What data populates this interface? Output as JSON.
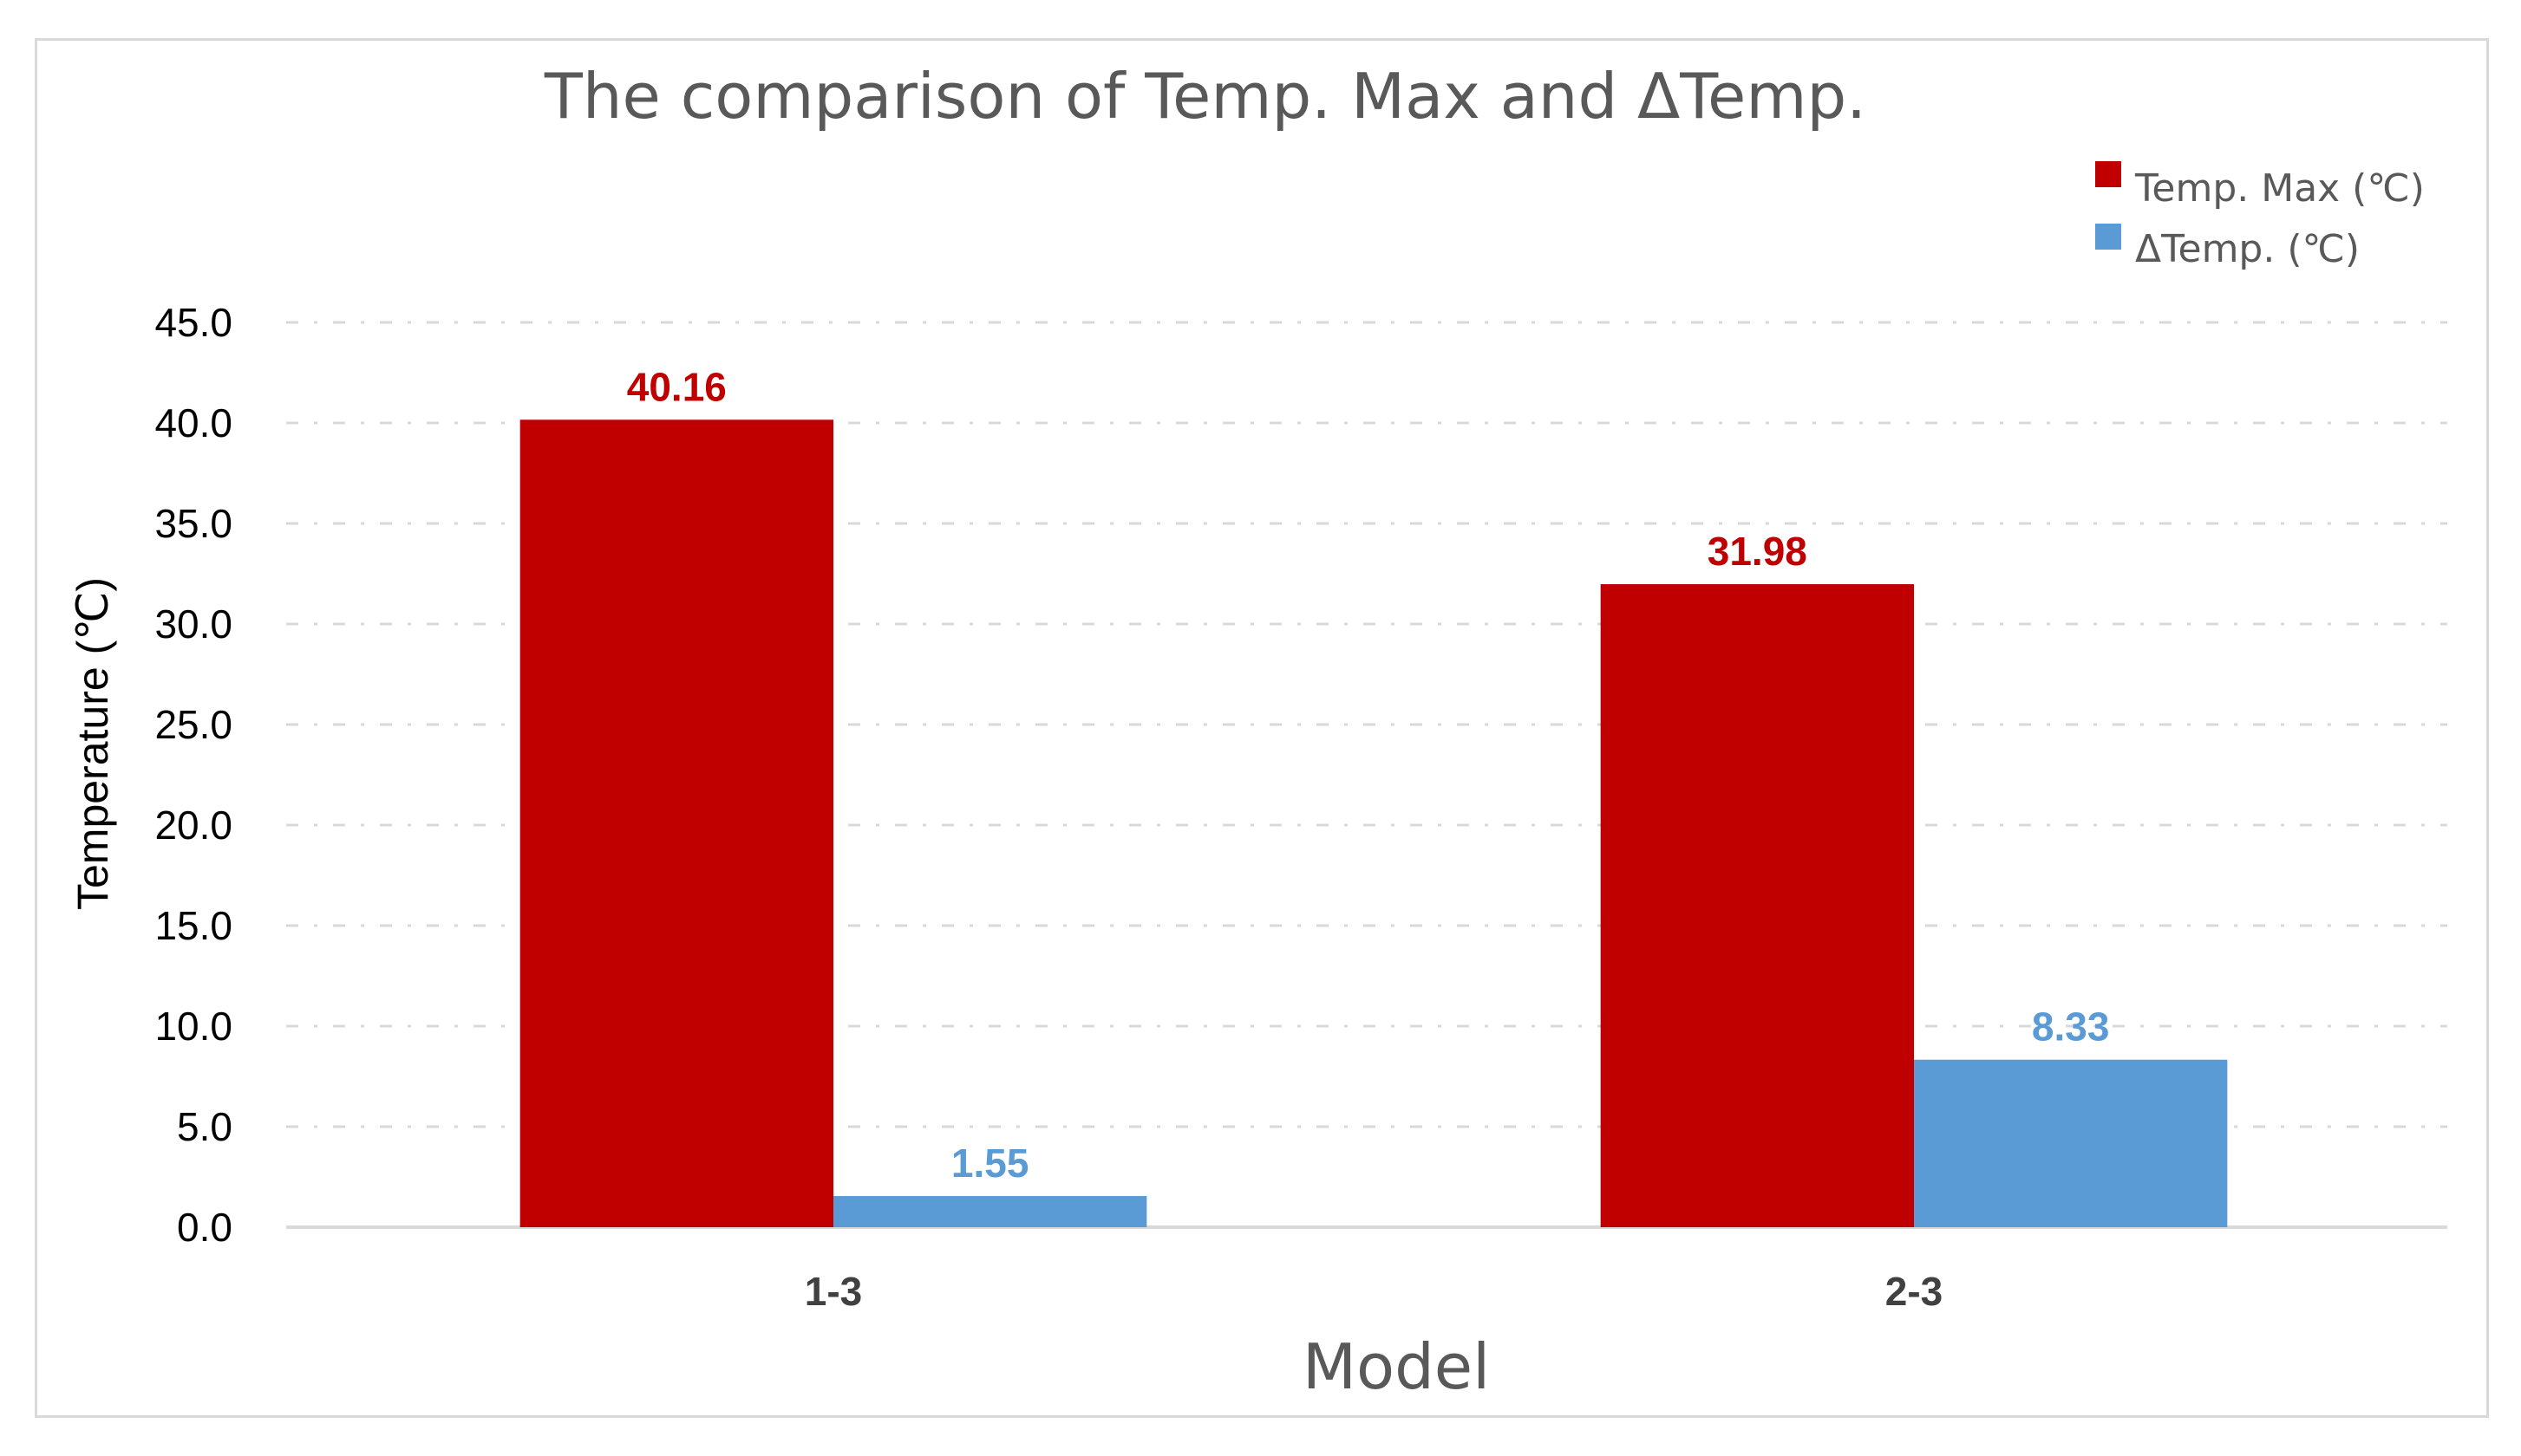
{
  "chart_data": {
    "type": "bar",
    "title": "The comparison of Temp. Max and ΔTemp.",
    "xlabel": "Model",
    "ylabel": "Temperature (℃)",
    "categories": [
      "1-3",
      "2-3"
    ],
    "series": [
      {
        "name": "Temp. Max (℃)",
        "values": [
          40.16,
          31.98
        ],
        "color": "#c00000",
        "labels": [
          "40.16",
          "31.98"
        ]
      },
      {
        "name": "ΔTemp. (℃)",
        "values": [
          1.55,
          8.33
        ],
        "color": "#5b9bd5",
        "labels": [
          "1.55",
          "8.33"
        ]
      }
    ],
    "ylim": [
      0,
      45
    ],
    "yticks": [
      "0.0",
      "5.0",
      "10.0",
      "15.0",
      "20.0",
      "25.0",
      "30.0",
      "35.0",
      "40.0",
      "45.0"
    ],
    "ytick_values": [
      0,
      5,
      10,
      15,
      20,
      25,
      30,
      35,
      40,
      45
    ],
    "grid": true,
    "legend_position": "top-right",
    "colors": {
      "gridline": "#d9d9d9",
      "axis_line": "#d9d9d9",
      "frame": "#d9d9d9"
    }
  }
}
